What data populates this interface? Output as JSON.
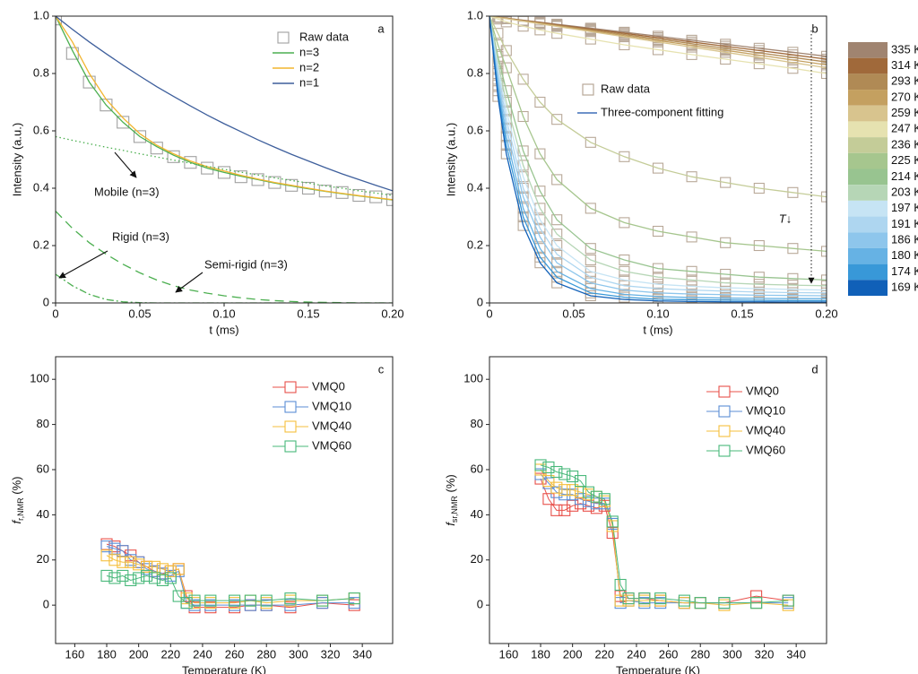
{
  "chart_data": [
    {
      "type": "line",
      "label": "a",
      "xlabel": "t (ms)",
      "ylabel": "Intensity (a.u.)",
      "x": [
        0,
        0.01,
        0.02,
        0.03,
        0.04,
        0.05,
        0.06,
        0.07,
        0.08,
        0.09,
        0.1,
        0.11,
        0.12,
        0.13,
        0.14,
        0.15,
        0.16,
        0.17,
        0.18,
        0.19,
        0.2
      ],
      "xlim": [
        0,
        0.2
      ],
      "ylim": [
        0,
        1
      ],
      "xticks": [
        0,
        0.05,
        {
          "value": 0.1,
          "label": "0.10"
        },
        0.15,
        {
          "value": 0.2,
          "label": "0.20"
        }
      ],
      "yticks": [
        0,
        0.2,
        0.4,
        0.6,
        0.8,
        {
          "value": 1,
          "label": "1.0"
        }
      ],
      "series": [
        {
          "name": "Raw data",
          "color": "#a0a0a0",
          "marker": "square",
          "legend": true,
          "values": [
            0.99,
            0.87,
            0.77,
            0.69,
            0.63,
            0.58,
            0.54,
            0.51,
            0.49,
            0.47,
            0.455,
            0.44,
            0.43,
            0.42,
            0.41,
            0.4,
            0.39,
            0.385,
            0.375,
            0.37,
            0.36
          ]
        },
        {
          "name": "n=3",
          "color": "#4caf50",
          "line": "solid",
          "legend": true,
          "values": [
            1,
            0.88,
            0.77,
            0.69,
            0.63,
            0.58,
            0.545,
            0.515,
            0.49,
            0.47,
            0.455,
            0.442,
            0.43,
            0.418,
            0.408,
            0.398,
            0.389,
            0.381,
            0.373,
            0.366,
            0.359
          ]
        },
        {
          "name": "n=2",
          "color": "#f2b52f",
          "line": "solid",
          "legend": true,
          "values": [
            1,
            0.91,
            0.8,
            0.71,
            0.645,
            0.59,
            0.55,
            0.52,
            0.495,
            0.475,
            0.46,
            0.445,
            0.432,
            0.42,
            0.41,
            0.4,
            0.39,
            0.382,
            0.374,
            0.367,
            0.36
          ]
        },
        {
          "name": "n=1",
          "color": "#3e5f9c",
          "line": "solid",
          "legend": true,
          "values": [
            1,
            0.954,
            0.91,
            0.869,
            0.829,
            0.791,
            0.754,
            0.72,
            0.687,
            0.655,
            0.625,
            0.597,
            0.569,
            0.543,
            0.518,
            0.495,
            0.472,
            0.45,
            0.43,
            0.41,
            0.391
          ]
        },
        {
          "name": "Mobile (n=3)",
          "color": "#4caf50",
          "line": "dotted",
          "legend": false,
          "values": [
            0.58,
            0.567,
            0.555,
            0.543,
            0.532,
            0.52,
            0.509,
            0.498,
            0.487,
            0.476,
            0.466,
            0.456,
            0.446,
            0.436,
            0.427,
            0.418,
            0.408,
            0.4,
            0.391,
            0.383,
            0.375
          ]
        },
        {
          "name": "Rigid (n=3)",
          "color": "#4caf50",
          "line": "dashdot",
          "legend": false,
          "values": [
            0.1,
            0.06,
            0.03,
            0.012,
            0.004,
            0.001,
            0,
            0,
            0,
            0,
            0,
            0,
            0,
            0,
            0,
            0,
            0,
            0,
            0,
            0,
            0
          ]
        },
        {
          "name": "Semi-rigid (n=3)",
          "color": "#4caf50",
          "line": "dashed",
          "legend": false,
          "values": [
            0.32,
            0.26,
            0.21,
            0.17,
            0.135,
            0.105,
            0.08,
            0.06,
            0.045,
            0.034,
            0.025,
            0.018,
            0.012,
            0.008,
            0.005,
            0.003,
            0.002,
            0.001,
            0,
            0,
            0
          ]
        }
      ]
    },
    {
      "type": "line",
      "label": "b",
      "xlabel": "t (ms)",
      "ylabel": "Intensity (a.u.)",
      "annotation": "T↓",
      "legend_labels": [
        "Raw data",
        "Three-component fitting"
      ],
      "marker_color": "#b8a898",
      "fit_legend_color": "#3e6fb8",
      "x": [
        0,
        0.005,
        0.01,
        0.02,
        0.03,
        0.04,
        0.06,
        0.08,
        0.1,
        0.12,
        0.14,
        0.16,
        0.18,
        0.2
      ],
      "xlim": [
        0,
        0.2
      ],
      "ylim": [
        0,
        1
      ],
      "xticks": [
        0,
        0.05,
        {
          "value": 0.1,
          "label": "0.10"
        },
        0.15,
        {
          "value": 0.2,
          "label": "0.20"
        }
      ],
      "yticks": [
        0,
        0.2,
        0.4,
        0.6,
        0.8,
        {
          "value": 1,
          "label": "1.0"
        }
      ],
      "series": [
        {
          "name": "335 K",
          "color": "#a08470",
          "values": [
            1,
            0.997,
            0.993,
            0.986,
            0.979,
            0.972,
            0.958,
            0.944,
            0.93,
            0.916,
            0.902,
            0.888,
            0.874,
            0.86
          ]
        },
        {
          "name": "314 K",
          "color": "#a0693a",
          "values": [
            1,
            0.996,
            0.993,
            0.985,
            0.978,
            0.97,
            0.955,
            0.94,
            0.925,
            0.91,
            0.895,
            0.88,
            0.865,
            0.85
          ]
        },
        {
          "name": "293 K",
          "color": "#b08a55",
          "values": [
            1,
            0.996,
            0.992,
            0.984,
            0.976,
            0.968,
            0.952,
            0.936,
            0.92,
            0.904,
            0.888,
            0.872,
            0.856,
            0.84
          ]
        },
        {
          "name": "270 K",
          "color": "#c4a060",
          "values": [
            1,
            0.996,
            0.992,
            0.983,
            0.975,
            0.966,
            0.949,
            0.932,
            0.915,
            0.898,
            0.881,
            0.864,
            0.847,
            0.83
          ]
        },
        {
          "name": "259 K",
          "color": "#d8c48e",
          "values": [
            1,
            0.995,
            0.991,
            0.982,
            0.973,
            0.964,
            0.946,
            0.928,
            0.91,
            0.892,
            0.874,
            0.856,
            0.838,
            0.82
          ]
        },
        {
          "name": "247 K",
          "color": "#e6e2b0",
          "values": [
            1,
            0.99,
            0.98,
            0.965,
            0.952,
            0.94,
            0.92,
            0.9,
            0.883,
            0.866,
            0.85,
            0.834,
            0.818,
            0.8
          ]
        },
        {
          "name": "236 K",
          "color": "#c4cc98",
          "values": [
            1,
            0.94,
            0.88,
            0.78,
            0.7,
            0.64,
            0.56,
            0.51,
            0.47,
            0.44,
            0.42,
            0.4,
            0.385,
            0.37
          ]
        },
        {
          "name": "225 K",
          "color": "#a6c68e",
          "values": [
            1,
            0.9,
            0.82,
            0.65,
            0.52,
            0.43,
            0.33,
            0.28,
            0.25,
            0.23,
            0.21,
            0.2,
            0.19,
            0.18
          ]
        },
        {
          "name": "214 K",
          "color": "#98c490",
          "values": [
            1,
            0.86,
            0.74,
            0.53,
            0.39,
            0.29,
            0.19,
            0.15,
            0.12,
            0.11,
            0.1,
            0.09,
            0.085,
            0.08
          ]
        },
        {
          "name": "203 K",
          "color": "#b6d6b6",
          "values": [
            1,
            0.84,
            0.7,
            0.48,
            0.33,
            0.24,
            0.15,
            0.11,
            0.09,
            0.08,
            0.07,
            0.065,
            0.062,
            0.06
          ]
        },
        {
          "name": "197 K",
          "color": "#c6e4f4",
          "values": [
            1,
            0.82,
            0.67,
            0.44,
            0.29,
            0.2,
            0.11,
            0.08,
            0.065,
            0.058,
            0.053,
            0.05,
            0.047,
            0.045
          ]
        },
        {
          "name": "191 K",
          "color": "#aed6f0",
          "values": [
            1,
            0.8,
            0.64,
            0.4,
            0.26,
            0.17,
            0.09,
            0.06,
            0.05,
            0.045,
            0.041,
            0.038,
            0.036,
            0.035
          ]
        },
        {
          "name": "186 K",
          "color": "#8ec6ec",
          "values": [
            1,
            0.78,
            0.61,
            0.37,
            0.23,
            0.14,
            0.07,
            0.045,
            0.035,
            0.031,
            0.029,
            0.027,
            0.026,
            0.025
          ]
        },
        {
          "name": "180 K",
          "color": "#66b2e4",
          "values": [
            1,
            0.76,
            0.58,
            0.33,
            0.19,
            0.11,
            0.05,
            0.03,
            0.022,
            0.019,
            0.017,
            0.016,
            0.015,
            0.015
          ]
        },
        {
          "name": "174 K",
          "color": "#3898d8",
          "values": [
            1,
            0.74,
            0.55,
            0.3,
            0.16,
            0.09,
            0.035,
            0.02,
            0.013,
            0.011,
            0.01,
            0.009,
            0.008,
            0.008
          ]
        },
        {
          "name": "169 K",
          "color": "#1060b8",
          "values": [
            1,
            0.72,
            0.52,
            0.27,
            0.14,
            0.07,
            0.025,
            0.012,
            0.007,
            0.005,
            0.004,
            0.004,
            0.003,
            0.003
          ]
        }
      ]
    },
    {
      "type": "line",
      "label": "c",
      "xlabel": "Temperature (K)",
      "ylabel": {
        "main": "f",
        "sub": "r,NMR",
        "unit": " (%)"
      },
      "x": [
        180,
        185,
        190,
        195,
        200,
        205,
        210,
        215,
        220,
        225,
        230,
        235,
        245,
        260,
        270,
        280,
        295,
        315,
        335
      ],
      "xlim": [
        148,
        359
      ],
      "ylim": [
        -17,
        110
      ],
      "xticks": [
        160,
        180,
        200,
        220,
        240,
        260,
        280,
        300,
        320,
        340
      ],
      "yticks": [
        0,
        20,
        40,
        60,
        80,
        100
      ],
      "series": [
        {
          "name": "VMQ0",
          "color": "#e8504a",
          "values": [
            27,
            26,
            24,
            22,
            19,
            17,
            15,
            14,
            15,
            16,
            4,
            -1,
            -1,
            -1,
            0,
            0,
            -1,
            1,
            0
          ]
        },
        {
          "name": "VMQ10",
          "color": "#5b8ed6",
          "values": [
            26,
            25,
            24,
            20,
            19,
            16,
            15,
            14,
            13,
            15,
            1,
            0,
            0,
            0,
            0,
            0,
            0,
            1,
            1
          ]
        },
        {
          "name": "VMQ40",
          "color": "#f5bf3c",
          "values": [
            22,
            20,
            19,
            19,
            18,
            17,
            17,
            16,
            15,
            16,
            3,
            1,
            1,
            1,
            2,
            1,
            2,
            2,
            3
          ]
        },
        {
          "name": "VMQ60",
          "color": "#48b87a",
          "values": [
            13,
            12,
            13,
            11,
            12,
            13,
            12,
            11,
            12,
            4,
            1,
            2,
            2,
            2,
            2,
            2,
            3,
            2,
            3
          ]
        }
      ]
    },
    {
      "type": "line",
      "label": "d",
      "xlabel": "Temperature (K)",
      "ylabel": {
        "main": "f",
        "sub": "sr,NMR",
        "unit": " (%)"
      },
      "x": [
        180,
        185,
        190,
        195,
        200,
        205,
        210,
        215,
        220,
        225,
        230,
        235,
        245,
        255,
        270,
        280,
        295,
        315,
        335
      ],
      "xlim": [
        148,
        359
      ],
      "ylim": [
        -17,
        110
      ],
      "xticks": [
        160,
        180,
        200,
        220,
        240,
        260,
        280,
        300,
        320,
        340
      ],
      "yticks": [
        0,
        20,
        40,
        60,
        80,
        100
      ],
      "series": [
        {
          "name": "VMQ0",
          "color": "#e8504a",
          "values": [
            56,
            47,
            42,
            42,
            44,
            45,
            44,
            43,
            44,
            32,
            4,
            3,
            3,
            2,
            1,
            1,
            1,
            4,
            2
          ]
        },
        {
          "name": "VMQ10",
          "color": "#5b8ed6",
          "values": [
            58,
            54,
            50,
            49,
            49,
            47,
            46,
            45,
            45,
            36,
            1,
            2,
            1,
            1,
            1,
            1,
            1,
            1,
            1
          ]
        },
        {
          "name": "VMQ40",
          "color": "#f5bf3c",
          "values": [
            60,
            55,
            52,
            51,
            51,
            50,
            49,
            48,
            46,
            35,
            2,
            2,
            2,
            2,
            1,
            1,
            0,
            1,
            0
          ]
        },
        {
          "name": "VMQ60",
          "color": "#48b87a",
          "values": [
            62,
            61,
            59,
            58,
            57,
            55,
            50,
            48,
            47,
            37,
            9,
            3,
            3,
            3,
            2,
            1,
            1,
            1,
            2
          ]
        }
      ]
    }
  ]
}
